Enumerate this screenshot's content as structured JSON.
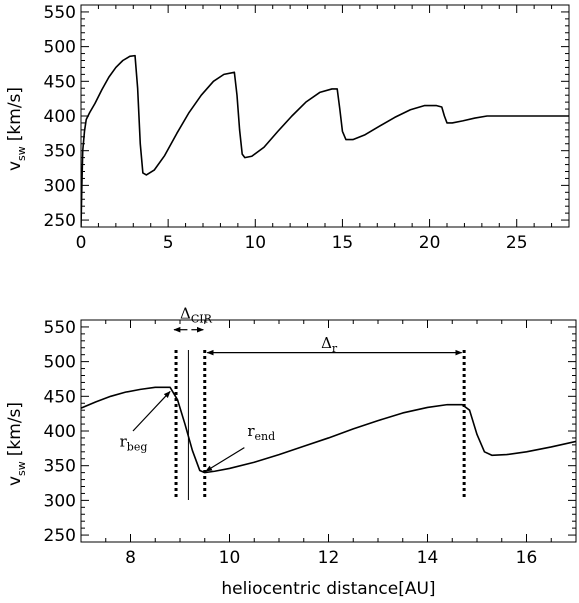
{
  "chart_data": [
    {
      "type": "line",
      "title": "",
      "xlabel": "",
      "ylabel": {
        "main": "v",
        "sub": "sw",
        "unit": "[km/s]"
      },
      "xlim": [
        0,
        28
      ],
      "ylim": [
        240,
        560
      ],
      "xticks": [
        0,
        5,
        10,
        15,
        20,
        25
      ],
      "yticks": [
        250,
        300,
        350,
        400,
        450,
        500,
        550
      ],
      "x_minor_step": 1,
      "y_minor_step": 10,
      "grid": false,
      "series": [
        {
          "color": "#000000",
          "points": [
            [
              0.0,
              240
            ],
            [
              0.05,
              300
            ],
            [
              0.1,
              350
            ],
            [
              0.2,
              378
            ],
            [
              0.3,
              395
            ],
            [
              0.5,
              405
            ],
            [
              0.8,
              418
            ],
            [
              1.2,
              438
            ],
            [
              1.6,
              456
            ],
            [
              2.0,
              470
            ],
            [
              2.4,
              480
            ],
            [
              2.8,
              486
            ],
            [
              3.1,
              487
            ],
            [
              3.25,
              440
            ],
            [
              3.4,
              360
            ],
            [
              3.55,
              318
            ],
            [
              3.75,
              315
            ],
            [
              4.2,
              322
            ],
            [
              4.8,
              343
            ],
            [
              5.5,
              375
            ],
            [
              6.2,
              405
            ],
            [
              6.9,
              430
            ],
            [
              7.6,
              450
            ],
            [
              8.2,
              460
            ],
            [
              8.8,
              463
            ],
            [
              8.95,
              430
            ],
            [
              9.1,
              380
            ],
            [
              9.25,
              345
            ],
            [
              9.4,
              340
            ],
            [
              9.8,
              342
            ],
            [
              10.5,
              355
            ],
            [
              11.3,
              378
            ],
            [
              12.1,
              400
            ],
            [
              12.9,
              420
            ],
            [
              13.7,
              434
            ],
            [
              14.4,
              439
            ],
            [
              14.7,
              439
            ],
            [
              14.85,
              410
            ],
            [
              15.0,
              378
            ],
            [
              15.2,
              366
            ],
            [
              15.6,
              366
            ],
            [
              16.3,
              373
            ],
            [
              17.1,
              385
            ],
            [
              18.0,
              398
            ],
            [
              18.9,
              409
            ],
            [
              19.7,
              415
            ],
            [
              20.4,
              415
            ],
            [
              20.7,
              413
            ],
            [
              20.85,
              400
            ],
            [
              21.0,
              390
            ],
            [
              21.3,
              390
            ],
            [
              21.9,
              393
            ],
            [
              22.6,
              397
            ],
            [
              23.3,
              400
            ],
            [
              24.0,
              400
            ],
            [
              26.0,
              400
            ],
            [
              28.0,
              400
            ]
          ]
        }
      ]
    },
    {
      "type": "line",
      "title": "",
      "xlabel": "heliocentric distance[AU]",
      "ylabel": {
        "main": "v",
        "sub": "sw",
        "unit": "[km/s]"
      },
      "xlim": [
        7,
        17
      ],
      "ylim": [
        240,
        560
      ],
      "xticks": [
        8,
        10,
        12,
        14,
        16
      ],
      "yticks": [
        250,
        300,
        350,
        400,
        450,
        500,
        550
      ],
      "x_minor_step": 0.5,
      "y_minor_step": 10,
      "grid": false,
      "series": [
        {
          "color": "#000000",
          "points": [
            [
              7.0,
              433
            ],
            [
              7.3,
              442
            ],
            [
              7.6,
              450
            ],
            [
              7.9,
              456
            ],
            [
              8.2,
              460
            ],
            [
              8.5,
              463
            ],
            [
              8.8,
              463
            ],
            [
              8.95,
              445
            ],
            [
              9.1,
              410
            ],
            [
              9.25,
              372
            ],
            [
              9.4,
              343
            ],
            [
              9.5,
              340
            ],
            [
              9.7,
              342
            ],
            [
              10.0,
              346
            ],
            [
              10.5,
              355
            ],
            [
              11.0,
              366
            ],
            [
              11.5,
              378
            ],
            [
              12.0,
              390
            ],
            [
              12.5,
              403
            ],
            [
              13.0,
              415
            ],
            [
              13.5,
              426
            ],
            [
              14.0,
              434
            ],
            [
              14.4,
              438
            ],
            [
              14.7,
              438
            ],
            [
              14.85,
              430
            ],
            [
              15.0,
              395
            ],
            [
              15.15,
              370
            ],
            [
              15.3,
              365
            ],
            [
              15.6,
              366
            ],
            [
              16.0,
              370
            ],
            [
              16.5,
              377
            ],
            [
              17.0,
              385
            ]
          ]
        }
      ],
      "vlines": [
        {
          "x": 8.92,
          "style": "dotted"
        },
        {
          "x": 9.17,
          "style": "solid"
        },
        {
          "x": 9.5,
          "style": "dotted"
        },
        {
          "x": 14.74,
          "style": "dotted"
        }
      ],
      "arrows": [
        {
          "from": [
            9.15,
            546
          ],
          "to": [
            8.88,
            546
          ]
        },
        {
          "from": [
            9.23,
            546
          ],
          "to": [
            9.47,
            546
          ]
        },
        {
          "from": [
            12.0,
            513
          ],
          "to": [
            9.55,
            513
          ]
        },
        {
          "from": [
            12.0,
            513
          ],
          "to": [
            14.69,
            513
          ]
        },
        {
          "from": [
            8.05,
            400
          ],
          "to": [
            8.8,
            457
          ]
        },
        {
          "from": [
            10.3,
            376
          ],
          "to": [
            9.52,
            342
          ]
        }
      ],
      "annotations": [
        {
          "main": "Δ",
          "sub": "CIR",
          "x": 9.0,
          "y": 562
        },
        {
          "main": "Δ",
          "sub": "r",
          "x": 11.85,
          "y": 520
        },
        {
          "main": "r",
          "sub": "beg",
          "x": 7.78,
          "y": 378
        },
        {
          "main": "r",
          "sub": "end",
          "x": 10.36,
          "y": 393
        }
      ]
    }
  ]
}
